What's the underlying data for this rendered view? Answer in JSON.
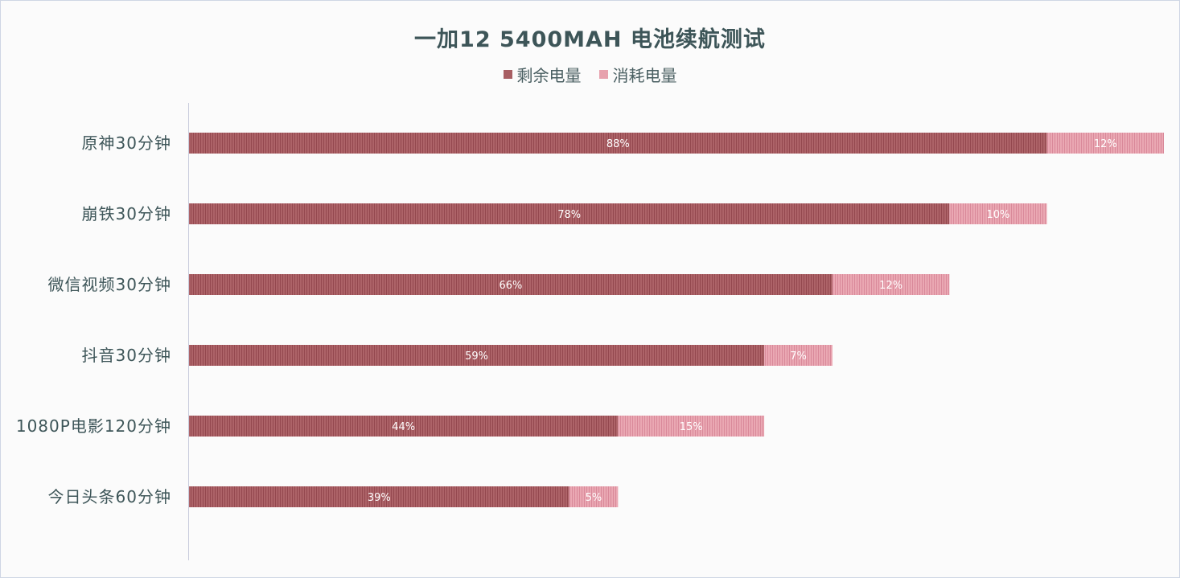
{
  "chart_data": {
    "type": "bar",
    "orientation": "horizontal",
    "stacked": true,
    "title": "一加12 5400MAH 电池续航测试",
    "categories": [
      "原神30分钟",
      "崩铁30分钟",
      "微信视频30分钟",
      "抖音30分钟",
      "1080P电影120分钟",
      "今日头条60分钟"
    ],
    "series": [
      {
        "name": "剩余电量",
        "color": "#a85e63",
        "values": [
          88,
          78,
          66,
          59,
          44,
          39
        ],
        "labels": [
          "88%",
          "78%",
          "66%",
          "59%",
          "44%",
          "39%"
        ]
      },
      {
        "name": "消耗电量",
        "color": "#e7a1ad",
        "values": [
          12,
          10,
          12,
          7,
          15,
          5
        ],
        "labels": [
          "12%",
          "10%",
          "12%",
          "7%",
          "15%",
          "5%"
        ]
      }
    ],
    "xlim": [
      0,
      100
    ],
    "legend_position": "top",
    "grid": false
  }
}
